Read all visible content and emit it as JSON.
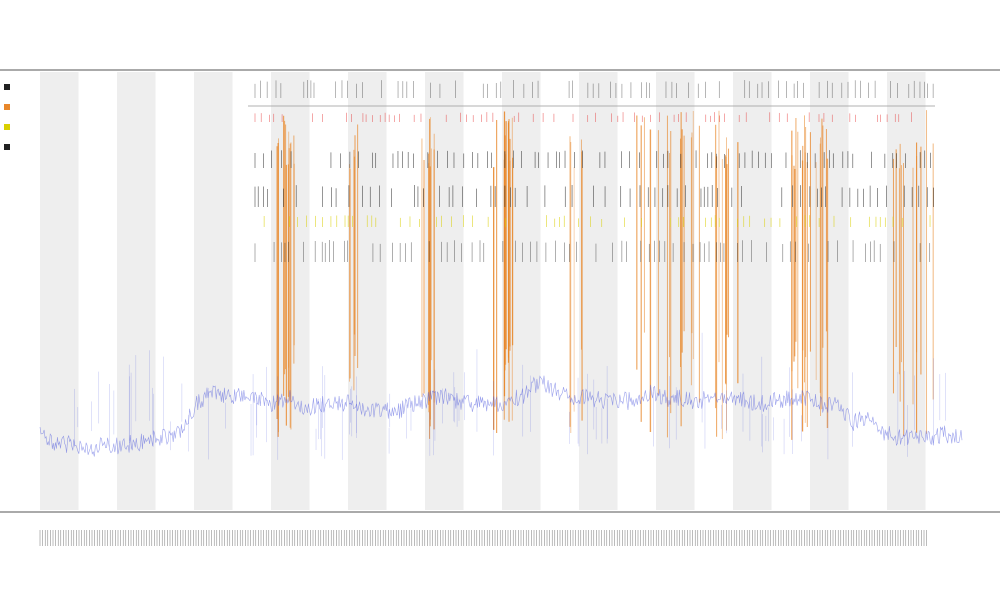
{
  "chart_data": {
    "type": "line",
    "title": "",
    "subtitle_1": "",
    "subtitle_2": "",
    "xlabel": "",
    "ylabel": "",
    "x_range": [
      0,
      1
    ],
    "y_range": [
      0,
      1
    ],
    "bands_count": 12,
    "colors": {
      "band": "#eeeeee",
      "trace": "#4a55dd",
      "orange_spike": "#e8872a",
      "red_tick": "#e53030",
      "yellow_tick": "#d9cf00",
      "black_tick": "#222222",
      "axis": "#555555"
    },
    "series": [
      {
        "color": "#4a55dd",
        "values": [
          0.12,
          0.08,
          0.09,
          0.07,
          0.08,
          0.08,
          0.09,
          0.1,
          0.11,
          0.13,
          0.22,
          0.26,
          0.25,
          0.24,
          0.24,
          0.22,
          0.24,
          0.21,
          0.22,
          0.22,
          0.23,
          0.2,
          0.2,
          0.2,
          0.22,
          0.24,
          0.25,
          0.22,
          0.22,
          0.22,
          0.23,
          0.25,
          0.3,
          0.26,
          0.24,
          0.24,
          0.23,
          0.23,
          0.23,
          0.26,
          0.24,
          0.24,
          0.22,
          0.26,
          0.24,
          0.24,
          0.22,
          0.23,
          0.24,
          0.24,
          0.22,
          0.22,
          0.16,
          0.17,
          0.12,
          0.11,
          0.11,
          0.11,
          0.12,
          0.11
        ]
      }
    ]
  }
}
